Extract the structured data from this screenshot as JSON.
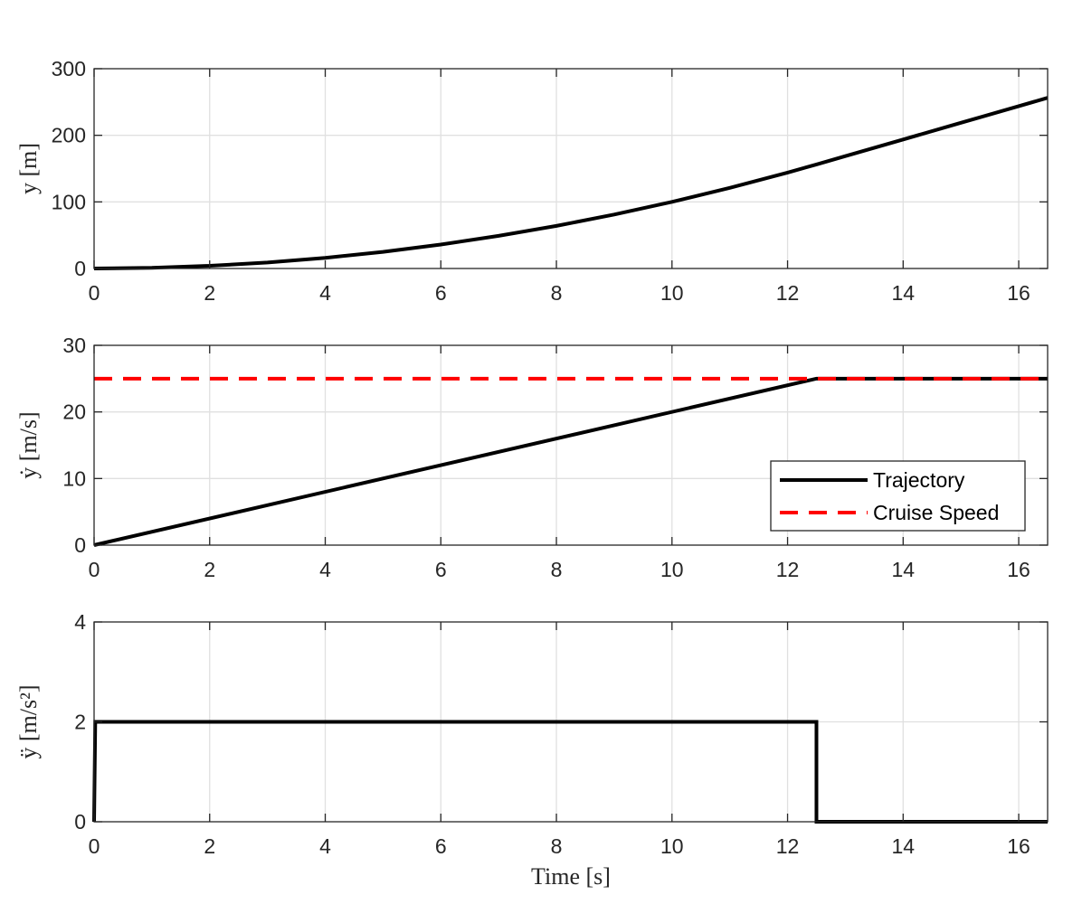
{
  "chart_data": [
    {
      "type": "line",
      "xlabel": "",
      "ylabel": "y [m]",
      "xlim": [
        0,
        16.5
      ],
      "ylim": [
        0,
        300
      ],
      "xticks": [
        "0",
        "2",
        "4",
        "6",
        "8",
        "10",
        "12",
        "14",
        "16"
      ],
      "yticks": [
        "0",
        "100",
        "200",
        "300"
      ],
      "grid": true,
      "series": [
        {
          "color": "#000000",
          "style": "solid",
          "x": [
            0,
            1,
            2,
            3,
            4,
            5,
            6,
            7,
            8,
            9,
            10,
            11,
            12,
            12.5,
            13,
            14,
            15,
            16,
            16.5
          ],
          "y": [
            0,
            1,
            4,
            9,
            16,
            25,
            36,
            49,
            64,
            81,
            100,
            121,
            144,
            156.25,
            168.75,
            193.75,
            218.75,
            243.75,
            256.25
          ]
        }
      ]
    },
    {
      "type": "line",
      "xlabel": "",
      "ylabel": "ẏ [m/s]",
      "xlim": [
        0,
        16.5
      ],
      "ylim": [
        0,
        30
      ],
      "xticks": [
        "0",
        "2",
        "4",
        "6",
        "8",
        "10",
        "12",
        "14",
        "16"
      ],
      "yticks": [
        "0",
        "10",
        "20",
        "30"
      ],
      "grid": true,
      "legend_position": "bottom-right",
      "series": [
        {
          "name": "Trajectory",
          "color": "#000000",
          "style": "solid",
          "x": [
            0,
            12.5,
            16.5
          ],
          "y": [
            0,
            25,
            25
          ]
        },
        {
          "name": "Cruise Speed",
          "color": "#ff0000",
          "style": "dashed",
          "x": [
            0,
            16.5
          ],
          "y": [
            25,
            25
          ]
        }
      ]
    },
    {
      "type": "line",
      "xlabel": "Time [s]",
      "ylabel": "ÿ [m/s²]",
      "xlim": [
        0,
        16.5
      ],
      "ylim": [
        0,
        4
      ],
      "xticks": [
        "0",
        "2",
        "4",
        "6",
        "8",
        "10",
        "12",
        "14",
        "16"
      ],
      "yticks": [
        "0",
        "2",
        "4"
      ],
      "grid": true,
      "series": [
        {
          "color": "#000000",
          "style": "solid",
          "x": [
            0,
            0.02,
            12.5,
            12.5,
            16.5
          ],
          "y": [
            0,
            2,
            2,
            0,
            0
          ]
        }
      ]
    }
  ]
}
